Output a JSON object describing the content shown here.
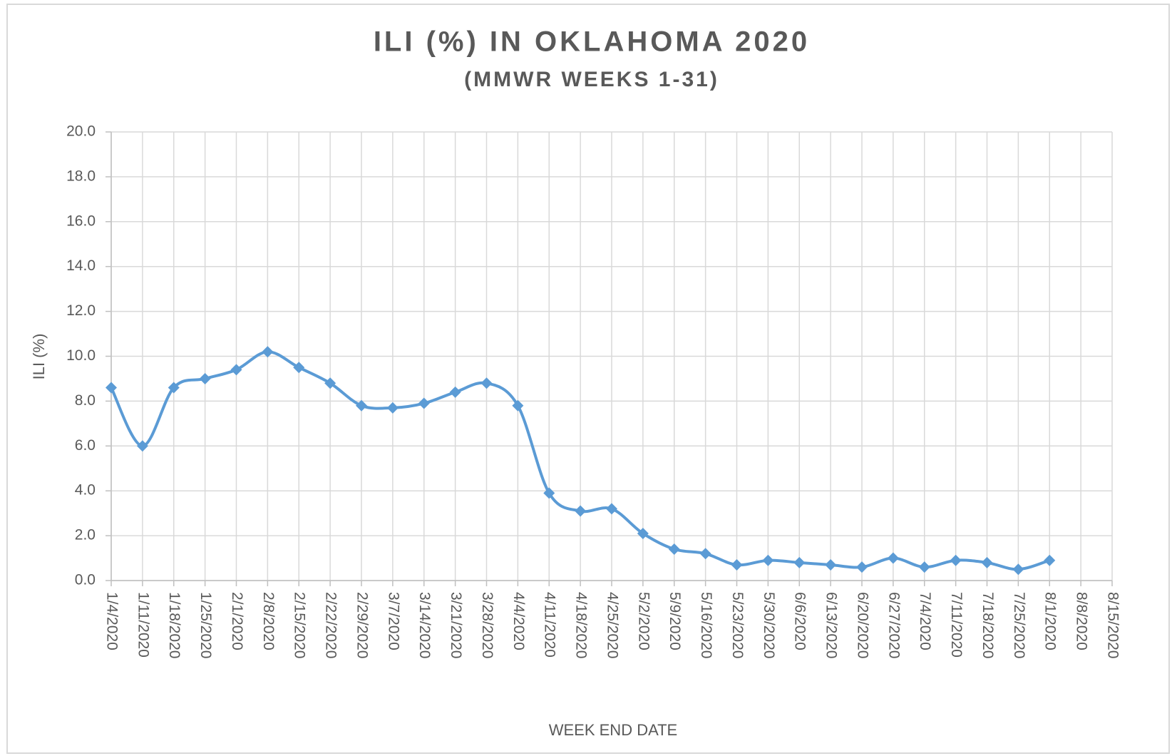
{
  "chart_data": {
    "type": "line",
    "title": "ILI (%) IN OKLAHOMA 2020",
    "subtitle": "(MMWR WEEKS 1-31)",
    "x_label": "WEEK END DATE",
    "y_label": "ILI (%)",
    "categories": [
      "1/4/2020",
      "1/11/2020",
      "1/18/2020",
      "1/25/2020",
      "2/1/2020",
      "2/8/2020",
      "2/15/2020",
      "2/22/2020",
      "2/29/2020",
      "3/7/2020",
      "3/14/2020",
      "3/21/2020",
      "3/28/2020",
      "4/4/2020",
      "4/11/2020",
      "4/18/2020",
      "4/25/2020",
      "5/2/2020",
      "5/9/2020",
      "5/16/2020",
      "5/23/2020",
      "5/30/2020",
      "6/6/2020",
      "6/13/2020",
      "6/20/2020",
      "6/27/2020",
      "7/4/2020",
      "7/11/2020",
      "7/18/2020",
      "7/25/2020",
      "8/1/2020",
      "8/8/2020",
      "8/15/2020"
    ],
    "values": [
      8.6,
      6.0,
      8.6,
      9.0,
      9.4,
      10.2,
      9.5,
      8.8,
      7.8,
      7.7,
      7.9,
      8.4,
      8.8,
      7.8,
      3.9,
      3.1,
      3.2,
      2.1,
      1.4,
      1.2,
      0.7,
      0.9,
      0.8,
      0.7,
      0.6,
      1.0,
      0.6,
      0.9,
      0.8,
      0.5,
      0.9,
      null,
      null
    ],
    "color": "#5b9bd5",
    "ylim": [
      0,
      20
    ],
    "yticks": [
      {
        "value": 0,
        "label": "0.0"
      },
      {
        "value": 2,
        "label": "2.0"
      },
      {
        "value": 4,
        "label": "4.0"
      },
      {
        "value": 6,
        "label": "6.0"
      },
      {
        "value": 8,
        "label": "8.0"
      },
      {
        "value": 10,
        "label": "10.0"
      },
      {
        "value": 12,
        "label": "12.0"
      },
      {
        "value": 14,
        "label": "14.0"
      },
      {
        "value": 16,
        "label": "16.0"
      },
      {
        "value": 18,
        "label": "18.0"
      },
      {
        "value": 20,
        "label": "20.0"
      }
    ],
    "grid": true
  }
}
